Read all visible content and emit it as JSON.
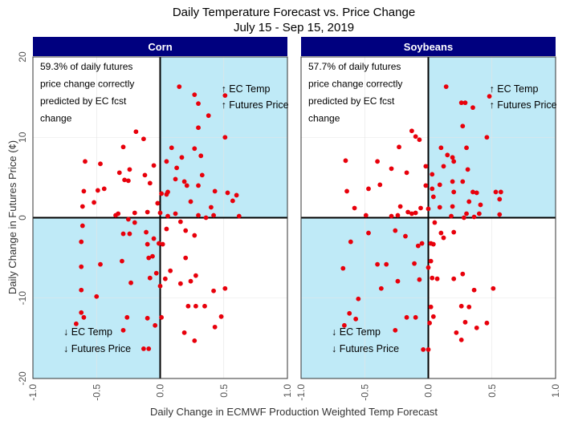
{
  "chart_data": {
    "type": "scatter",
    "title": "Daily Temperature Forecast vs. Price Change",
    "subtitle": "July 15 - Sep 15, 2019",
    "xlabel": "Daily Change in ECMWF Production Weighted Temp Forecast",
    "ylabel": "Daily Change in Futures Price (¢)",
    "xlim": [
      -1.0,
      1.0
    ],
    "ylim": [
      -20,
      20
    ],
    "x_ticks": [
      "-1.0",
      "-0.5",
      "0.0",
      "0.5",
      "1.0"
    ],
    "y_ticks": [
      "-20",
      "-10",
      "0",
      "10",
      "20"
    ],
    "grid": true,
    "colors": {
      "points": "#e8000b",
      "quadrant_fill": "#bfeaf7",
      "strip": "#00007f"
    },
    "quadrant_labels": {
      "upper_right_1": "↑ EC Temp",
      "upper_right_2": "↑ Futures Price",
      "lower_left_1": "↓ EC Temp",
      "lower_left_2": "↓ Futures Price"
    },
    "panels": [
      {
        "name": "Corn",
        "stat_lines": [
          "59.3% of daily futures",
          "price change correctly",
          "predicted by EC fcst",
          "change"
        ],
        "points": [
          [
            0.15,
            16.3
          ],
          [
            0.27,
            15.3
          ],
          [
            0.51,
            15.2
          ],
          [
            0.3,
            14.2
          ],
          [
            0.38,
            12.7
          ],
          [
            0.3,
            11.2
          ],
          [
            -0.19,
            10.7
          ],
          [
            0.51,
            10.0
          ],
          [
            -0.13,
            9.8
          ],
          [
            -0.29,
            8.8
          ],
          [
            0.09,
            8.7
          ],
          [
            0.27,
            8.6
          ],
          [
            -0.59,
            7.0
          ],
          [
            0.32,
            7.7
          ],
          [
            0.17,
            7.5
          ],
          [
            -0.05,
            6.5
          ],
          [
            0.05,
            7.0
          ],
          [
            -0.47,
            6.7
          ],
          [
            0.13,
            6.2
          ],
          [
            -0.24,
            6.0
          ],
          [
            -0.32,
            5.6
          ],
          [
            -0.12,
            5.3
          ],
          [
            0.33,
            5.3
          ],
          [
            0.12,
            4.8
          ],
          [
            0.19,
            4.5
          ],
          [
            -0.25,
            4.6
          ],
          [
            -0.28,
            4.7
          ],
          [
            -0.08,
            4.3
          ],
          [
            0.21,
            4.0
          ],
          [
            -0.44,
            3.6
          ],
          [
            0.3,
            4.0
          ],
          [
            0.06,
            3.2
          ],
          [
            0.01,
            3.0
          ],
          [
            0.43,
            3.3
          ],
          [
            0.05,
            2.9
          ],
          [
            -0.6,
            3.3
          ],
          [
            0.53,
            3.1
          ],
          [
            0.6,
            2.8
          ],
          [
            0.57,
            2.1
          ],
          [
            -0.49,
            3.4
          ],
          [
            0.24,
            2.0
          ],
          [
            -0.02,
            1.8
          ],
          [
            -0.61,
            1.4
          ],
          [
            0.4,
            1.3
          ],
          [
            -0.33,
            0.5
          ],
          [
            0.3,
            0.3
          ],
          [
            0.42,
            0.3
          ],
          [
            0.62,
            0.2
          ],
          [
            -0.2,
            0.6
          ],
          [
            -0.1,
            0.7
          ],
          [
            0.12,
            0.5
          ],
          [
            0.36,
            0.0
          ],
          [
            0.0,
            0.6
          ],
          [
            0.06,
            0.2
          ],
          [
            -0.52,
            1.9
          ],
          [
            -0.25,
            -0.2
          ],
          [
            -0.35,
            0.3
          ],
          [
            0.16,
            -0.5
          ],
          [
            0.2,
            -1.6
          ],
          [
            -0.2,
            -0.6
          ],
          [
            0.05,
            -1.4
          ],
          [
            -0.61,
            -1.0
          ],
          [
            -0.29,
            -2.0
          ],
          [
            -0.24,
            -2.0
          ],
          [
            -0.11,
            -1.8
          ],
          [
            -0.62,
            -3.0
          ],
          [
            0.27,
            -2.2
          ],
          [
            -0.05,
            -2.6
          ],
          [
            -0.01,
            -3.2
          ],
          [
            0.02,
            -3.3
          ],
          [
            -0.1,
            -3.3
          ],
          [
            -0.06,
            -4.8
          ],
          [
            -0.09,
            -5.0
          ],
          [
            0.2,
            -5.0
          ],
          [
            -0.62,
            -6.1
          ],
          [
            -0.47,
            -5.8
          ],
          [
            -0.3,
            -5.4
          ],
          [
            0.08,
            -6.6
          ],
          [
            -0.03,
            -6.9
          ],
          [
            0.04,
            -7.6
          ],
          [
            0.28,
            -7.2
          ],
          [
            -0.08,
            -7.5
          ],
          [
            -0.23,
            -8.1
          ],
          [
            0.24,
            -7.9
          ],
          [
            0.16,
            -8.2
          ],
          [
            0.51,
            -8.8
          ],
          [
            0.42,
            -9.1
          ],
          [
            0.0,
            -8.5
          ],
          [
            -0.62,
            -9.0
          ],
          [
            -0.5,
            -9.8
          ],
          [
            -0.62,
            -11.8
          ],
          [
            0.28,
            -11.0
          ],
          [
            0.35,
            -11.0
          ],
          [
            -0.6,
            -12.4
          ],
          [
            0.22,
            -11.0
          ],
          [
            -0.26,
            -12.4
          ],
          [
            -0.1,
            -12.5
          ],
          [
            0.48,
            -12.3
          ],
          [
            0.01,
            -12.4
          ],
          [
            -0.66,
            -13.2
          ],
          [
            -0.04,
            -13.4
          ],
          [
            0.43,
            -13.6
          ],
          [
            -0.29,
            -14.0
          ],
          [
            0.19,
            -14.3
          ],
          [
            0.27,
            -15.3
          ],
          [
            -0.13,
            -16.3
          ],
          [
            -0.09,
            -16.3
          ]
        ]
      },
      {
        "name": "Soybeans",
        "stat_lines": [
          "57.7% of daily futures",
          "price change correctly",
          "predicted by EC fcst",
          "change"
        ],
        "points": [
          [
            0.14,
            16.3
          ],
          [
            0.48,
            15.1
          ],
          [
            0.26,
            14.3
          ],
          [
            0.29,
            14.3
          ],
          [
            0.35,
            13.7
          ],
          [
            0.27,
            11.4
          ],
          [
            -0.13,
            10.8
          ],
          [
            0.46,
            10.0
          ],
          [
            -0.1,
            10.1
          ],
          [
            -0.07,
            9.7
          ],
          [
            0.1,
            8.7
          ],
          [
            0.3,
            8.7
          ],
          [
            -0.23,
            8.8
          ],
          [
            0.15,
            7.8
          ],
          [
            0.19,
            7.5
          ],
          [
            0.2,
            7.0
          ],
          [
            -0.65,
            7.1
          ],
          [
            -0.4,
            7.0
          ],
          [
            -0.29,
            6.1
          ],
          [
            0.31,
            6.0
          ],
          [
            -0.17,
            5.6
          ],
          [
            -0.02,
            6.4
          ],
          [
            0.12,
            6.4
          ],
          [
            0.03,
            5.4
          ],
          [
            0.19,
            4.5
          ],
          [
            0.27,
            4.5
          ],
          [
            -0.02,
            4.0
          ],
          [
            0.09,
            4.1
          ],
          [
            0.35,
            3.2
          ],
          [
            -0.38,
            4.1
          ],
          [
            0.03,
            3.6
          ],
          [
            0.2,
            3.2
          ],
          [
            0.57,
            3.2
          ],
          [
            0.38,
            3.1
          ],
          [
            -0.47,
            3.6
          ],
          [
            0.53,
            3.2
          ],
          [
            0.04,
            2.6
          ],
          [
            0.56,
            2.3
          ],
          [
            0.32,
            2.0
          ],
          [
            0.41,
            1.6
          ],
          [
            -0.64,
            3.3
          ],
          [
            0.09,
            1.3
          ],
          [
            0.19,
            1.4
          ],
          [
            -0.22,
            1.4
          ],
          [
            -0.58,
            1.2
          ],
          [
            -0.06,
            1.2
          ],
          [
            0.0,
            1.1
          ],
          [
            0.3,
            0.5
          ],
          [
            0.4,
            0.5
          ],
          [
            -0.16,
            0.7
          ],
          [
            -0.13,
            0.5
          ],
          [
            0.56,
            0.4
          ],
          [
            0.18,
            0.2
          ],
          [
            0.28,
            0.0
          ],
          [
            -0.29,
            0.2
          ],
          [
            -0.24,
            0.3
          ],
          [
            0.36,
            0.1
          ],
          [
            -0.1,
            0.6
          ],
          [
            -0.49,
            0.3
          ],
          [
            0.05,
            -0.6
          ],
          [
            0.2,
            -1.8
          ],
          [
            -0.26,
            -1.6
          ],
          [
            0.1,
            -1.9
          ],
          [
            -0.47,
            -1.9
          ],
          [
            -0.61,
            -3.0
          ],
          [
            0.12,
            -2.5
          ],
          [
            -0.18,
            -2.3
          ],
          [
            -0.05,
            -3.2
          ],
          [
            0.02,
            -3.2
          ],
          [
            0.04,
            -3.3
          ],
          [
            -0.08,
            -3.5
          ],
          [
            -0.4,
            -5.8
          ],
          [
            -0.33,
            -5.8
          ],
          [
            -0.11,
            -5.7
          ],
          [
            0.02,
            -5.4
          ],
          [
            -0.67,
            -6.3
          ],
          [
            0.0,
            -6.2
          ],
          [
            0.27,
            -7.0
          ],
          [
            -0.07,
            -7.7
          ],
          [
            0.03,
            -7.5
          ],
          [
            -0.24,
            -7.9
          ],
          [
            0.07,
            -7.6
          ],
          [
            0.2,
            -7.6
          ],
          [
            0.51,
            -8.8
          ],
          [
            0.36,
            -9.0
          ],
          [
            -0.37,
            -8.8
          ],
          [
            -0.55,
            -10.1
          ],
          [
            0.26,
            -11.0
          ],
          [
            0.32,
            -11.1
          ],
          [
            0.02,
            -11.1
          ],
          [
            -0.62,
            -11.9
          ],
          [
            -0.17,
            -12.4
          ],
          [
            -0.57,
            -12.6
          ],
          [
            -0.1,
            -12.4
          ],
          [
            0.04,
            -12.3
          ],
          [
            -0.66,
            -13.4
          ],
          [
            0.46,
            -13.1
          ],
          [
            0.29,
            -13.0
          ],
          [
            0.01,
            -13.1
          ],
          [
            0.38,
            -13.7
          ],
          [
            -0.26,
            -14.0
          ],
          [
            0.22,
            -14.3
          ],
          [
            0.26,
            -15.2
          ],
          [
            -0.04,
            -16.4
          ],
          [
            0.0,
            -16.4
          ]
        ]
      }
    ]
  }
}
